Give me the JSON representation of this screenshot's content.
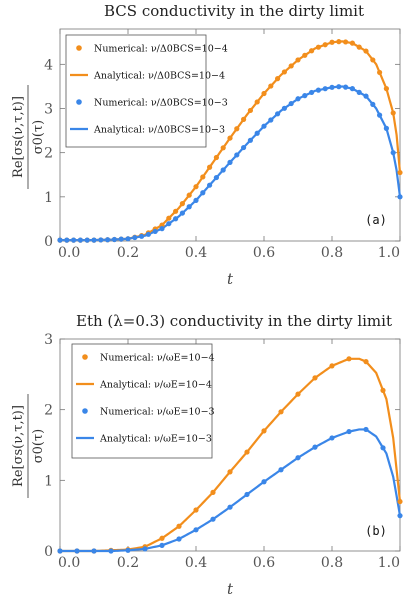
{
  "chart_data": [
    {
      "type": "line",
      "title": "BCS conductivity in the dirty limit",
      "xlabel": "t",
      "ylabel_num": "Re[σs(ν,τ,t)]",
      "ylabel_den": "σ0(τ)",
      "panel_label": "(a)",
      "xlim": [
        0,
        1
      ],
      "ylim": [
        0,
        4.8
      ],
      "xticks": [
        "0.0",
        "0.2",
        "0.4",
        "0.6",
        "0.8",
        "1.0"
      ],
      "xtick_values": [
        0,
        0.2,
        0.4,
        0.6,
        0.8,
        1.0
      ],
      "yticks": [
        "0",
        "1",
        "2",
        "3",
        "4"
      ],
      "ytick_values": [
        0,
        1,
        2,
        3,
        4
      ],
      "legend": [
        {
          "label": "Numerical: ν/Δ0BCS=10−4",
          "style": "points",
          "color": "#F28E1C"
        },
        {
          "label": "Analytical: ν/Δ0BCS=10−4",
          "style": "line",
          "color": "#F28E1C"
        },
        {
          "label": "Numerical: ν/Δ0BCS=10−3",
          "style": "points",
          "color": "#3A86E8"
        },
        {
          "label": "Analytical: ν/Δ0BCS=10−3",
          "style": "line",
          "color": "#3A86E8"
        }
      ],
      "series": [
        {
          "name": "ν/Δ0BCS=10−4",
          "color": "#F28E1C",
          "point_step": 0.02,
          "x": [
            0,
            0.1,
            0.15,
            0.2,
            0.25,
            0.3,
            0.35,
            0.4,
            0.45,
            0.5,
            0.55,
            0.6,
            0.65,
            0.7,
            0.75,
            0.8,
            0.83,
            0.86,
            0.9,
            0.93,
            0.96,
            0.98,
            0.99,
            1.0
          ],
          "y": [
            0.02,
            0.02,
            0.03,
            0.05,
            0.14,
            0.36,
            0.75,
            1.23,
            1.78,
            2.33,
            2.86,
            3.34,
            3.76,
            4.1,
            4.36,
            4.5,
            4.52,
            4.48,
            4.3,
            4.0,
            3.45,
            2.9,
            2.4,
            1.55
          ]
        },
        {
          "name": "ν/Δ0BCS=10−3",
          "color": "#3A86E8",
          "point_step": 0.02,
          "x": [
            0,
            0.1,
            0.15,
            0.2,
            0.25,
            0.3,
            0.35,
            0.4,
            0.45,
            0.5,
            0.55,
            0.6,
            0.65,
            0.7,
            0.75,
            0.8,
            0.83,
            0.86,
            0.9,
            0.93,
            0.96,
            0.98,
            0.99,
            1.0
          ],
          "y": [
            0.02,
            0.02,
            0.03,
            0.05,
            0.12,
            0.28,
            0.56,
            0.92,
            1.35,
            1.78,
            2.2,
            2.6,
            2.95,
            3.22,
            3.4,
            3.48,
            3.5,
            3.45,
            3.28,
            3.0,
            2.55,
            2.0,
            1.6,
            1.0
          ]
        }
      ]
    },
    {
      "type": "line",
      "title": "Eth (λ=0.3) conductivity in the dirty limit",
      "xlabel": "t",
      "ylabel_num": "Re[σs(ν,τ,t)]",
      "ylabel_den": "σ0(τ)",
      "panel_label": "(b)",
      "xlim": [
        0,
        1
      ],
      "ylim": [
        0,
        3
      ],
      "xticks": [
        "0.0",
        "0.2",
        "0.4",
        "0.6",
        "0.8",
        "1.0"
      ],
      "xtick_values": [
        0,
        0.2,
        0.4,
        0.6,
        0.8,
        1.0
      ],
      "yticks": [
        "0",
        "1",
        "2",
        "3"
      ],
      "ytick_values": [
        0,
        1,
        2,
        3
      ],
      "legend": [
        {
          "label": "Numerical: ν/ωE=10−4",
          "style": "points",
          "color": "#F28E1C"
        },
        {
          "label": "Analytical: ν/ωE=10−4",
          "style": "line",
          "color": "#F28E1C"
        },
        {
          "label": "Numerical: ν/ωE=10−3",
          "style": "points",
          "color": "#3A86E8"
        },
        {
          "label": "Analytical: ν/ωE=10−3",
          "style": "line",
          "color": "#3A86E8"
        }
      ],
      "series": [
        {
          "name": "ν/ωE=10−4",
          "color": "#F28E1C",
          "point_step": 0.05,
          "x": [
            0,
            0.1,
            0.15,
            0.2,
            0.25,
            0.3,
            0.35,
            0.4,
            0.45,
            0.5,
            0.55,
            0.6,
            0.65,
            0.7,
            0.75,
            0.8,
            0.85,
            0.88,
            0.9,
            0.93,
            0.96,
            0.98,
            0.99,
            1.0
          ],
          "y": [
            0.0,
            0.0,
            0.01,
            0.02,
            0.06,
            0.18,
            0.35,
            0.58,
            0.83,
            1.12,
            1.4,
            1.7,
            1.97,
            2.22,
            2.45,
            2.62,
            2.72,
            2.72,
            2.68,
            2.52,
            2.15,
            1.6,
            1.15,
            0.7
          ]
        },
        {
          "name": "ν/ωE=10−3",
          "color": "#3A86E8",
          "point_step": 0.05,
          "x": [
            0,
            0.1,
            0.15,
            0.2,
            0.25,
            0.3,
            0.35,
            0.4,
            0.45,
            0.5,
            0.55,
            0.6,
            0.65,
            0.7,
            0.75,
            0.8,
            0.85,
            0.88,
            0.9,
            0.93,
            0.96,
            0.98,
            0.99,
            1.0
          ],
          "y": [
            0.0,
            0.0,
            0.0,
            0.01,
            0.03,
            0.08,
            0.17,
            0.3,
            0.45,
            0.62,
            0.8,
            0.98,
            1.15,
            1.32,
            1.47,
            1.6,
            1.69,
            1.72,
            1.72,
            1.62,
            1.38,
            1.05,
            0.78,
            0.5
          ]
        }
      ]
    }
  ]
}
